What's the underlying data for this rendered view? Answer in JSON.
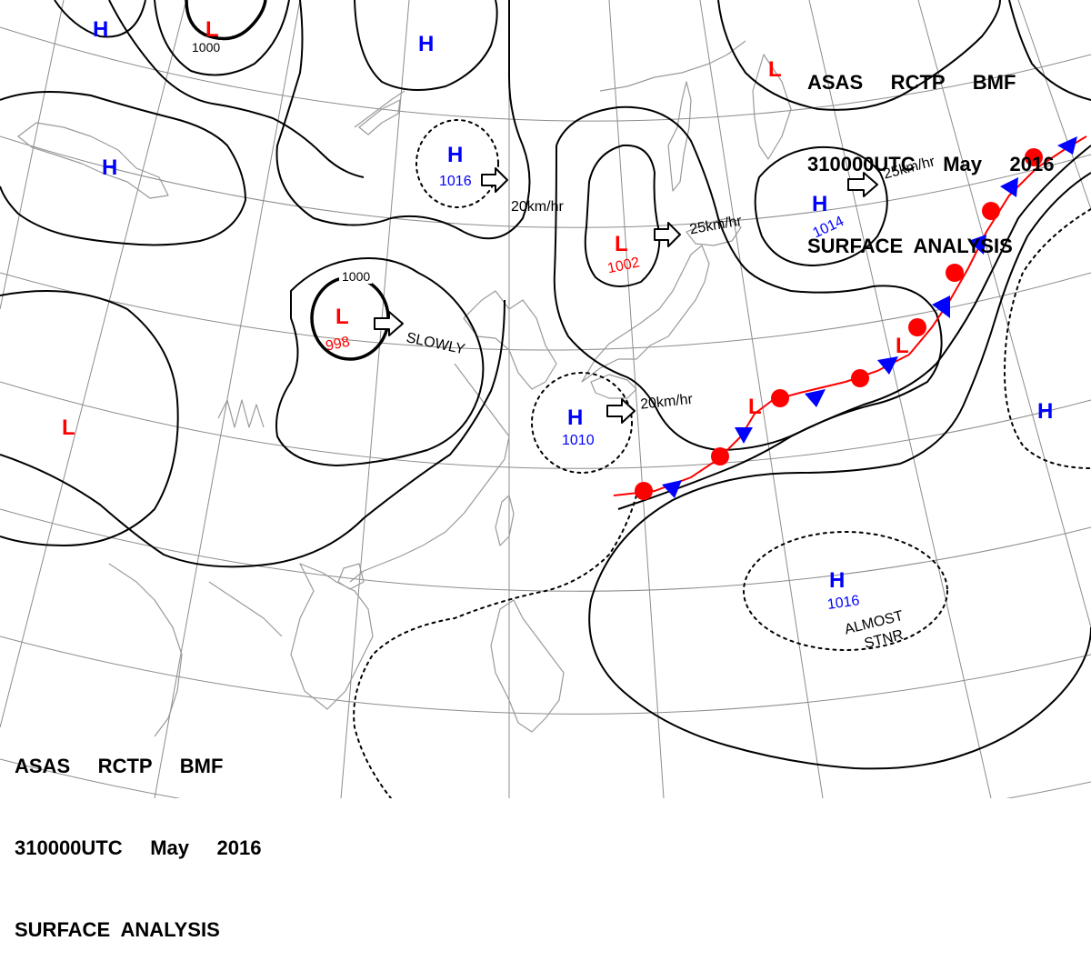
{
  "header_top_right": {
    "line1": "ASAS     RCTP     BMF",
    "line2": "310000UTC     May     2016",
    "line3": "SURFACE  ANALYSIS"
  },
  "header_bottom_left": {
    "line1": "ASAS     RCTP     BMF",
    "line2": "310000UTC     May     2016",
    "line3": "SURFACE  ANALYSIS"
  },
  "colors": {
    "high": "#0000ff",
    "low": "#ff0000",
    "isobar": "#000000",
    "coast": "#9a9a9a",
    "grid": "#8c8c8c",
    "front_cold": "#0000ff",
    "front_warm": "#ff0000"
  },
  "pressure_centers": [
    {
      "id": "h-nw-top",
      "type": "H",
      "value": ""
    },
    {
      "id": "l-north",
      "type": "L",
      "value": "1000"
    },
    {
      "id": "h-north",
      "type": "H",
      "value": ""
    },
    {
      "id": "h-mongolia",
      "type": "H",
      "value": ""
    },
    {
      "id": "h-1016",
      "type": "H",
      "value": "1016"
    },
    {
      "id": "l-998",
      "type": "L",
      "value": "998"
    },
    {
      "id": "l-1002",
      "type": "L",
      "value": "1002"
    },
    {
      "id": "h-1014",
      "type": "H",
      "value": "1014"
    },
    {
      "id": "l-ne",
      "type": "L",
      "value": ""
    },
    {
      "id": "l-west",
      "type": "L",
      "value": ""
    },
    {
      "id": "h-1010",
      "type": "H",
      "value": "1010"
    },
    {
      "id": "l-front-1",
      "type": "L",
      "value": ""
    },
    {
      "id": "l-front-2",
      "type": "L",
      "value": ""
    },
    {
      "id": "h-east",
      "type": "H",
      "value": ""
    },
    {
      "id": "h-1016-south",
      "type": "H",
      "value": "1016"
    }
  ],
  "isobar_labels": {
    "l_north": "1000",
    "l_998": "1000"
  },
  "movements": {
    "h1016": "20km/hr",
    "l1002": "25km/hr",
    "h1014": "25km/hr",
    "l998": "SLOWLY",
    "h1010": "20km/hr",
    "h1016_south_line1": "ALMOST",
    "h1016_south_line2": "STNR"
  }
}
